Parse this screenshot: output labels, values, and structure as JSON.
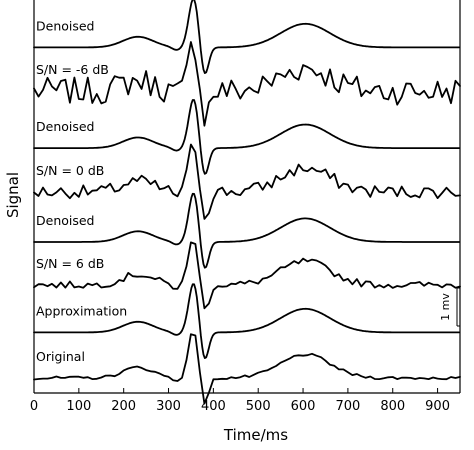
{
  "chart_data": {
    "type": "line",
    "xlabel": "Time/ms",
    "ylabel": "Signal",
    "xlim": [
      0,
      950
    ],
    "x_ticks": [
      0,
      100,
      200,
      300,
      400,
      500,
      600,
      700,
      800,
      900
    ],
    "x_tick_labels": [
      "0",
      "100",
      "200",
      "300",
      "400",
      "500",
      "600",
      "700",
      "800",
      "900"
    ],
    "scale_bar_label": "1 mv",
    "scale_bar_mv": 1,
    "noise_seed": 7,
    "series": [
      {
        "name": "Denoised",
        "offset_mv": 8.7,
        "noise_mv": 0.0,
        "smooth": true
      },
      {
        "name": "S/N = -6 dB",
        "offset_mv": 7.55,
        "noise_mv": 0.36,
        "smooth": false
      },
      {
        "name": "Denoised",
        "offset_mv": 6.05,
        "noise_mv": 0.0,
        "smooth": true
      },
      {
        "name": "S/N = 0 dB",
        "offset_mv": 4.9,
        "noise_mv": 0.17,
        "smooth": false
      },
      {
        "name": "Denoised",
        "offset_mv": 3.58,
        "noise_mv": 0.0,
        "smooth": true
      },
      {
        "name": "S/N = 6 dB",
        "offset_mv": 2.45,
        "noise_mv": 0.09,
        "smooth": false
      },
      {
        "name": "Approximation",
        "offset_mv": 1.2,
        "noise_mv": 0.0,
        "smooth": true
      },
      {
        "name": "Original",
        "offset_mv": 0.0,
        "noise_mv": 0.04,
        "smooth": false
      }
    ]
  }
}
